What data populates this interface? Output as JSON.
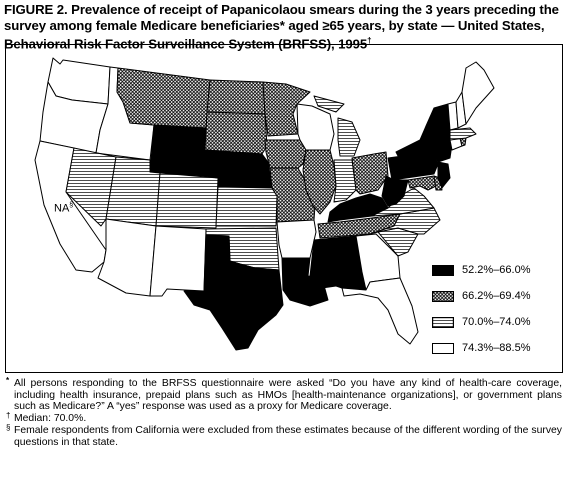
{
  "figure": {
    "title": "FIGURE 2. Prevalence of receipt of Papanicolaou smears during the 3 years preceding the survey among female Medicare beneficiaries* aged ≥65 years, by state — United States, Behavioral Risk Factor Surveillance System (BRFSS), 1995",
    "title_mark": "†"
  },
  "map": {
    "na_label": "NA",
    "na_mark": "§",
    "legend": [
      {
        "label": "52.2%–66.0%",
        "pattern": "solid-black"
      },
      {
        "label": "66.2%–69.4%",
        "pattern": "crosshatch"
      },
      {
        "label": "70.0%–74.0%",
        "pattern": "horizontal-lines"
      },
      {
        "label": "74.3%–88.5%",
        "pattern": "white"
      }
    ]
  },
  "footnotes": [
    {
      "mark": "*",
      "text": "All persons responding to the BRFSS questionnaire were asked “Do you have any kind of health-care coverage, including health insurance, prepaid plans such as HMOs [health-maintenance organizations], or government plans such as Medicare?” A “yes” response was used as a proxy for Medicare coverage."
    },
    {
      "mark": "†",
      "text": "Median: 70.0%."
    },
    {
      "mark": "§",
      "text": "Female respondents from California were excluded from these estimates because of the different wording of the survey questions in that state."
    }
  ]
}
